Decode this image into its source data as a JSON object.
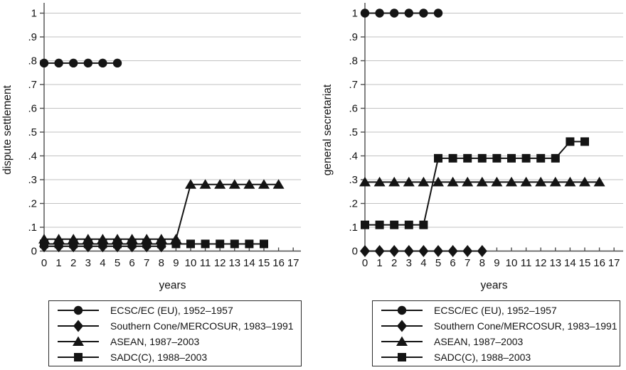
{
  "figure": {
    "background": "#ffffff",
    "line_color": "#141414",
    "grid_color": "#c2c2c2",
    "axis_color": "#4d4d4d",
    "text_color": "#141414"
  },
  "legend": {
    "items": [
      {
        "label": "ECSC/EC (EU), 1952–1957",
        "marker": "circle"
      },
      {
        "label": "Southern Cone/MERCOSUR, 1983–1991",
        "marker": "diamond"
      },
      {
        "label": "ASEAN, 1987–2003",
        "marker": "triangle"
      },
      {
        "label": "SADC(C), 1988–2003",
        "marker": "square"
      }
    ]
  },
  "chart_data": [
    {
      "type": "line",
      "title": "",
      "xlabel": "years",
      "ylabel": "dispute settlement",
      "xlim": [
        0,
        17.5
      ],
      "ylim": [
        0,
        1
      ],
      "grid": "horizontal",
      "legend_position": "below",
      "xticks": [
        0,
        1,
        2,
        3,
        4,
        5,
        6,
        7,
        8,
        9,
        10,
        11,
        12,
        13,
        14,
        15,
        16,
        17
      ],
      "yticks": [
        [
          0,
          "0"
        ],
        [
          0.1,
          ".1"
        ],
        [
          0.2,
          ".2"
        ],
        [
          0.3,
          ".3"
        ],
        [
          0.4,
          ".4"
        ],
        [
          0.5,
          ".5"
        ],
        [
          0.6,
          ".6"
        ],
        [
          0.7,
          ".7"
        ],
        [
          0.8,
          ".8"
        ],
        [
          0.9,
          ".9"
        ],
        [
          1,
          "1"
        ]
      ],
      "series": [
        {
          "name": "ECSC/EC (EU), 1952–1957",
          "marker": "circle",
          "x": [
            0,
            1,
            2,
            3,
            4,
            5
          ],
          "y": [
            0.79,
            0.79,
            0.79,
            0.79,
            0.79,
            0.79
          ]
        },
        {
          "name": "Southern Cone/MERCOSUR, 1983–1991",
          "marker": "diamond",
          "x": [
            0,
            1,
            2,
            3,
            4,
            5,
            6,
            7,
            8
          ],
          "y": [
            0.02,
            0.02,
            0.02,
            0.02,
            0.02,
            0.02,
            0.02,
            0.02,
            0.02
          ]
        },
        {
          "name": "ASEAN, 1987–2003",
          "marker": "triangle",
          "x": [
            0,
            1,
            2,
            3,
            4,
            5,
            6,
            7,
            8,
            9,
            10,
            11,
            12,
            13,
            14,
            15,
            16
          ],
          "y": [
            0.05,
            0.05,
            0.05,
            0.05,
            0.05,
            0.05,
            0.05,
            0.05,
            0.05,
            0.05,
            0.28,
            0.28,
            0.28,
            0.28,
            0.28,
            0.28,
            0.28
          ]
        },
        {
          "name": "SADC(C), 1988–2003",
          "marker": "square",
          "x": [
            0,
            1,
            2,
            3,
            4,
            5,
            6,
            7,
            8,
            9,
            10,
            11,
            12,
            13,
            14,
            15
          ],
          "y": [
            0.03,
            0.03,
            0.03,
            0.03,
            0.03,
            0.03,
            0.03,
            0.03,
            0.03,
            0.03,
            0.03,
            0.03,
            0.03,
            0.03,
            0.03,
            0.03
          ]
        }
      ]
    },
    {
      "type": "line",
      "title": "",
      "xlabel": "years",
      "ylabel": "general secretariat",
      "xlim": [
        0,
        17.5
      ],
      "ylim": [
        0,
        1
      ],
      "grid": "horizontal",
      "legend_position": "below",
      "xticks": [
        0,
        1,
        2,
        3,
        4,
        5,
        6,
        7,
        8,
        9,
        10,
        11,
        12,
        13,
        14,
        15,
        16,
        17
      ],
      "yticks": [
        [
          0,
          "0"
        ],
        [
          0.1,
          ".1"
        ],
        [
          0.2,
          ".2"
        ],
        [
          0.3,
          ".3"
        ],
        [
          0.4,
          ".4"
        ],
        [
          0.5,
          ".5"
        ],
        [
          0.6,
          ".6"
        ],
        [
          0.7,
          ".7"
        ],
        [
          0.8,
          ".8"
        ],
        [
          0.9,
          ".9"
        ],
        [
          1,
          "1"
        ]
      ],
      "series": [
        {
          "name": "ECSC/EC (EU), 1952–1957",
          "marker": "circle",
          "x": [
            0,
            1,
            2,
            3,
            4,
            5
          ],
          "y": [
            1,
            1,
            1,
            1,
            1,
            1
          ]
        },
        {
          "name": "Southern Cone/MERCOSUR, 1983–1991",
          "marker": "diamond",
          "x": [
            0,
            1,
            2,
            3,
            4,
            5,
            6,
            7,
            8
          ],
          "y": [
            0,
            0,
            0,
            0,
            0,
            0,
            0,
            0,
            0
          ]
        },
        {
          "name": "ASEAN, 1987–2003",
          "marker": "triangle",
          "x": [
            0,
            1,
            2,
            3,
            4,
            5,
            6,
            7,
            8,
            9,
            10,
            11,
            12,
            13,
            14,
            15,
            16
          ],
          "y": [
            0.29,
            0.29,
            0.29,
            0.29,
            0.29,
            0.29,
            0.29,
            0.29,
            0.29,
            0.29,
            0.29,
            0.29,
            0.29,
            0.29,
            0.29,
            0.29,
            0.29
          ]
        },
        {
          "name": "SADC(C), 1988–2003",
          "marker": "square",
          "x": [
            0,
            1,
            2,
            3,
            4,
            5,
            6,
            7,
            8,
            9,
            10,
            11,
            12,
            13,
            14,
            15
          ],
          "y": [
            0.11,
            0.11,
            0.11,
            0.11,
            0.11,
            0.39,
            0.39,
            0.39,
            0.39,
            0.39,
            0.39,
            0.39,
            0.39,
            0.39,
            0.46,
            0.46
          ]
        }
      ]
    }
  ]
}
